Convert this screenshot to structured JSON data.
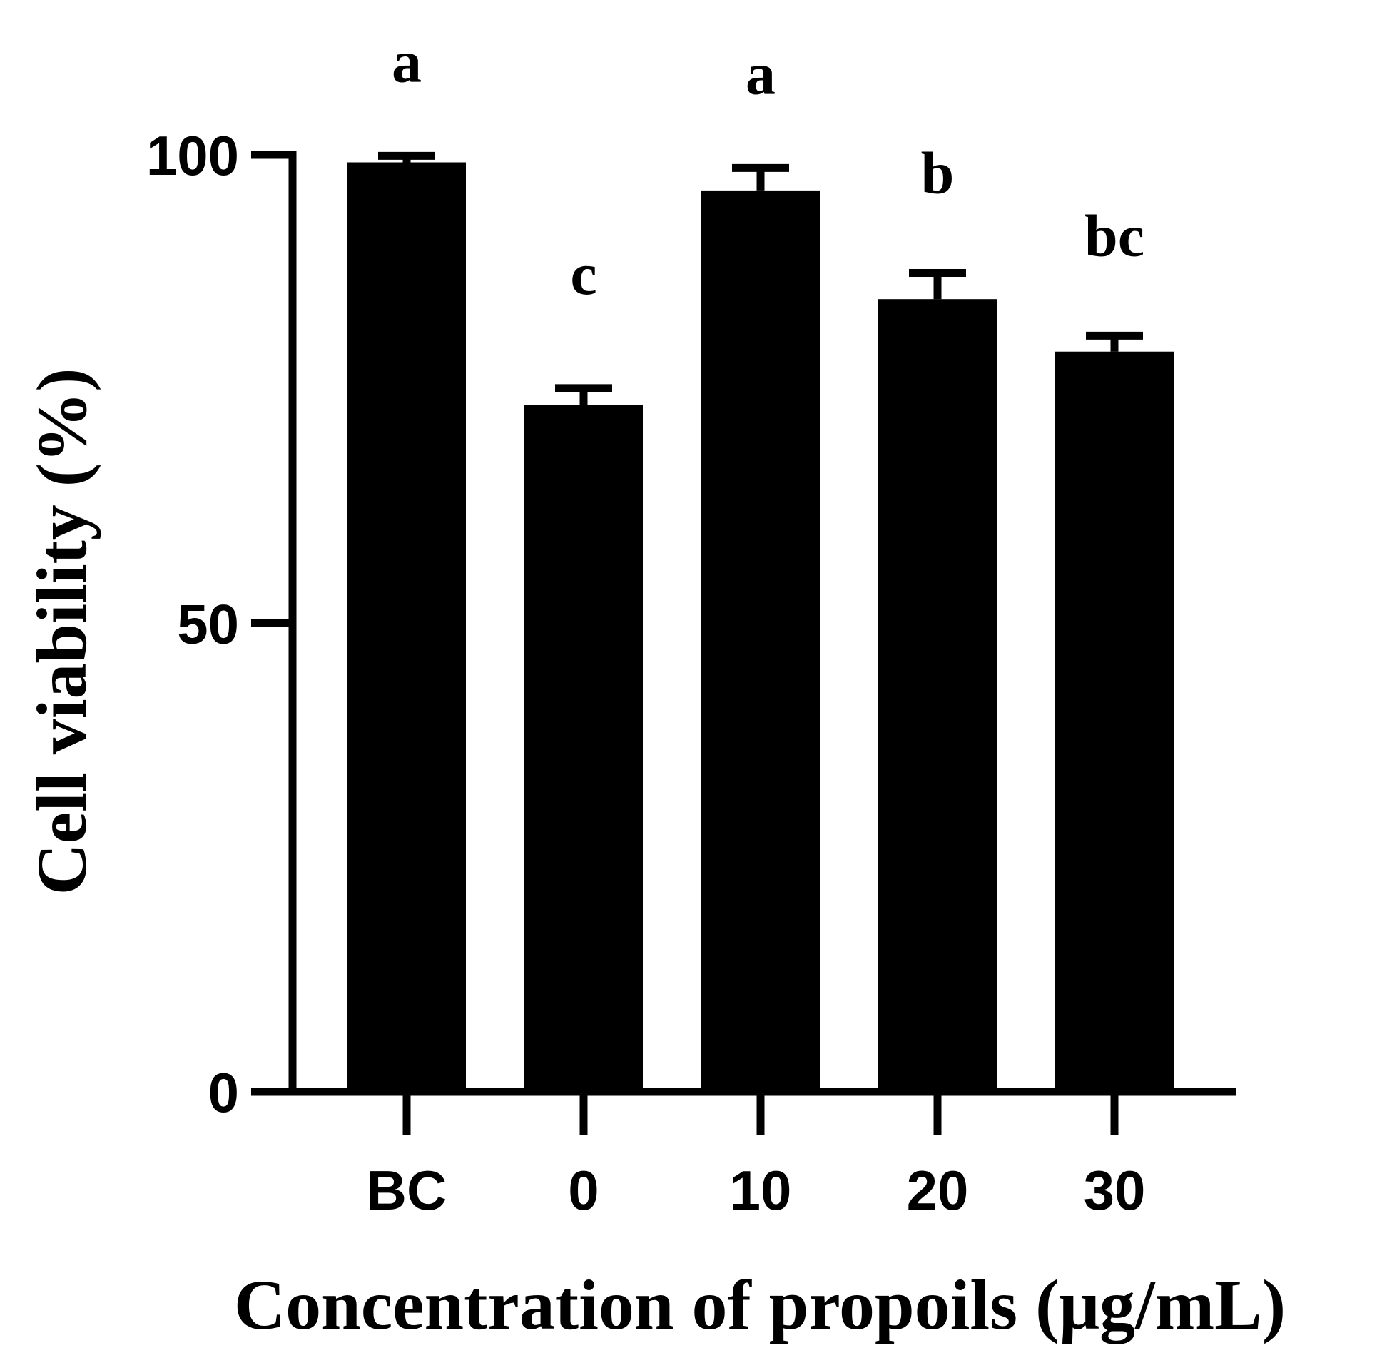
{
  "chart_data": {
    "type": "bar",
    "categories": [
      "BC",
      "0",
      "10",
      "20",
      "30"
    ],
    "values": [
      99.2,
      73.3,
      96.2,
      84.6,
      79.0
    ],
    "errors": [
      0.7,
      1.8,
      2.4,
      2.8,
      1.7
    ],
    "significance": [
      "a",
      "c",
      "a",
      "b",
      "bc"
    ],
    "xlabel": "Concentration of propoils (μg/mL)",
    "ylabel": "Cell viability (%)",
    "ylim": [
      0,
      100
    ],
    "yticks": [
      0,
      50,
      100
    ],
    "bar_color": "#000000",
    "grid": false,
    "legend": "none"
  }
}
